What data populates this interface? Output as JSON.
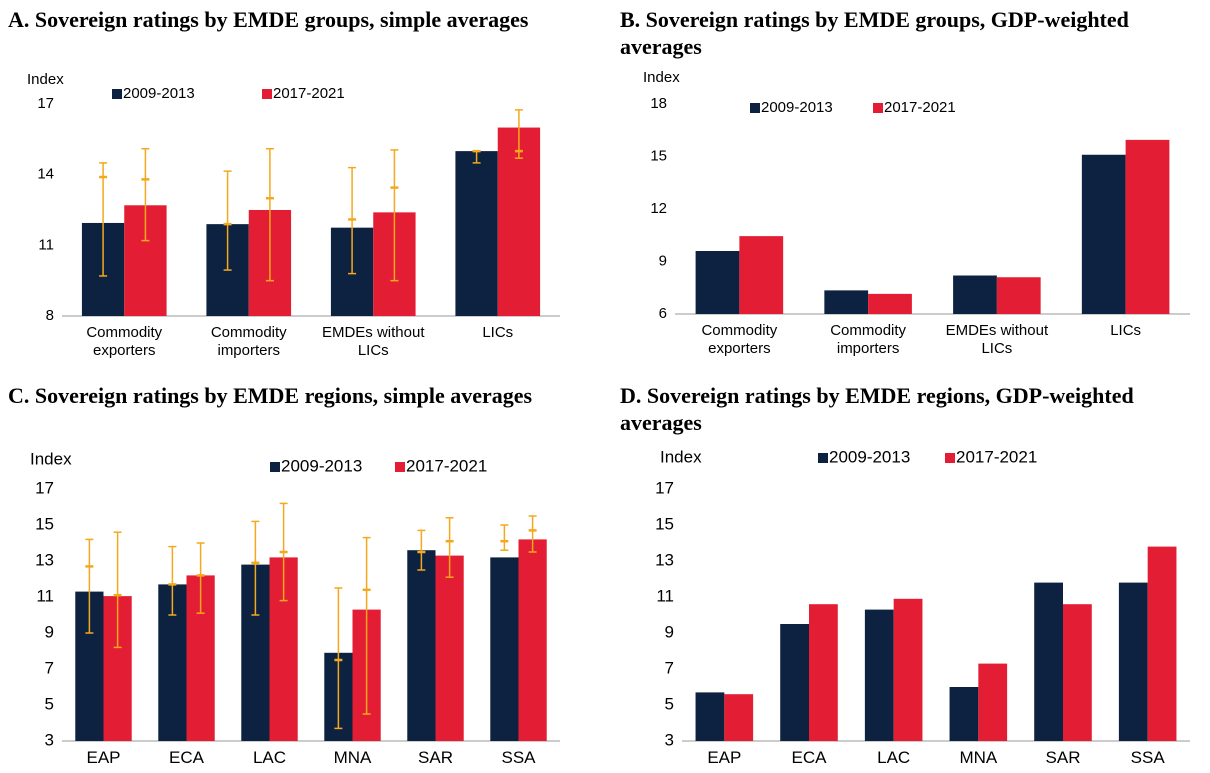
{
  "chart_data": [
    {
      "type": "bar",
      "title": "A. Sovereign ratings by EMDE groups, simple averages",
      "y_label": "Index",
      "categories": [
        "Commodity exporters",
        "Commodity importers",
        "EMDEs without LICs",
        "LICs"
      ],
      "series": [
        {
          "name": "2009-2013",
          "color": "#0d2240",
          "values": [
            11.95,
            11.9,
            11.75,
            15.0
          ],
          "range_high": [
            14.5,
            14.15,
            14.3,
            15.0
          ],
          "range_low": [
            9.7,
            9.95,
            9.8,
            14.5
          ],
          "range_mid": [
            13.9,
            11.9,
            12.1,
            15.0
          ]
        },
        {
          "name": "2017-2021",
          "color": "#e31e34",
          "values": [
            12.7,
            12.5,
            12.4,
            16.0
          ],
          "range_high": [
            15.1,
            15.1,
            15.05,
            16.75
          ],
          "range_low": [
            11.2,
            9.5,
            9.5,
            14.7
          ],
          "range_mid": [
            13.8,
            13.0,
            13.45,
            15.0
          ]
        }
      ],
      "ylim": [
        8,
        17
      ],
      "yticks": [
        8,
        11,
        14,
        17
      ]
    },
    {
      "type": "bar",
      "title": "B. Sovereign ratings by EMDE groups, GDP-weighted averages",
      "y_label": "Index",
      "categories": [
        "Commodity exporters",
        "Commodity importers",
        "EMDEs without LICs",
        "LICs"
      ],
      "series": [
        {
          "name": "2009-2013",
          "color": "#0d2240",
          "values": [
            9.6,
            7.35,
            8.2,
            15.1
          ]
        },
        {
          "name": "2017-2021",
          "color": "#e31e34",
          "values": [
            10.45,
            7.15,
            8.1,
            15.95
          ]
        }
      ],
      "ylim": [
        6,
        18
      ],
      "yticks": [
        6,
        9,
        12,
        15,
        18
      ]
    },
    {
      "type": "bar",
      "title": "C. Sovereign ratings by EMDE regions, simple averages",
      "y_label": "Index",
      "categories": [
        "EAP",
        "ECA",
        "LAC",
        "MNA",
        "SAR",
        "SSA"
      ],
      "series": [
        {
          "name": "2009-2013",
          "color": "#0d2240",
          "values": [
            11.3,
            11.7,
            12.8,
            7.9,
            13.6,
            13.2
          ],
          "range_high": [
            14.2,
            13.8,
            15.2,
            11.5,
            14.7,
            15.0
          ],
          "range_low": [
            9.0,
            10.0,
            10.0,
            3.7,
            12.5,
            13.6
          ],
          "range_mid": [
            12.7,
            11.7,
            12.9,
            7.5,
            13.5,
            14.1
          ]
        },
        {
          "name": "2017-2021",
          "color": "#e31e34",
          "values": [
            11.05,
            12.2,
            13.2,
            10.3,
            13.3,
            14.2
          ],
          "range_high": [
            14.6,
            14.0,
            16.2,
            14.3,
            15.4,
            15.5
          ],
          "range_low": [
            8.2,
            10.1,
            10.8,
            4.5,
            12.1,
            13.5
          ],
          "range_mid": [
            11.1,
            12.2,
            13.5,
            11.4,
            14.1,
            14.7
          ]
        }
      ],
      "ylim": [
        3,
        17
      ],
      "yticks": [
        3,
        5,
        7,
        9,
        11,
        13,
        15,
        17
      ]
    },
    {
      "type": "bar",
      "title": "D. Sovereign ratings by EMDE regions, GDP-weighted averages",
      "y_label": "Index",
      "categories": [
        "EAP",
        "ECA",
        "LAC",
        "MNA",
        "SAR",
        "SSA"
      ],
      "series": [
        {
          "name": "2009-2013",
          "color": "#0d2240",
          "values": [
            5.7,
            9.5,
            10.3,
            6.0,
            11.8,
            11.8
          ]
        },
        {
          "name": "2017-2021",
          "color": "#e31e34",
          "values": [
            5.6,
            10.6,
            10.9,
            7.3,
            10.6,
            13.8
          ]
        }
      ],
      "ylim": [
        3,
        17
      ],
      "yticks": [
        3,
        5,
        7,
        9,
        11,
        13,
        15,
        17
      ]
    }
  ]
}
